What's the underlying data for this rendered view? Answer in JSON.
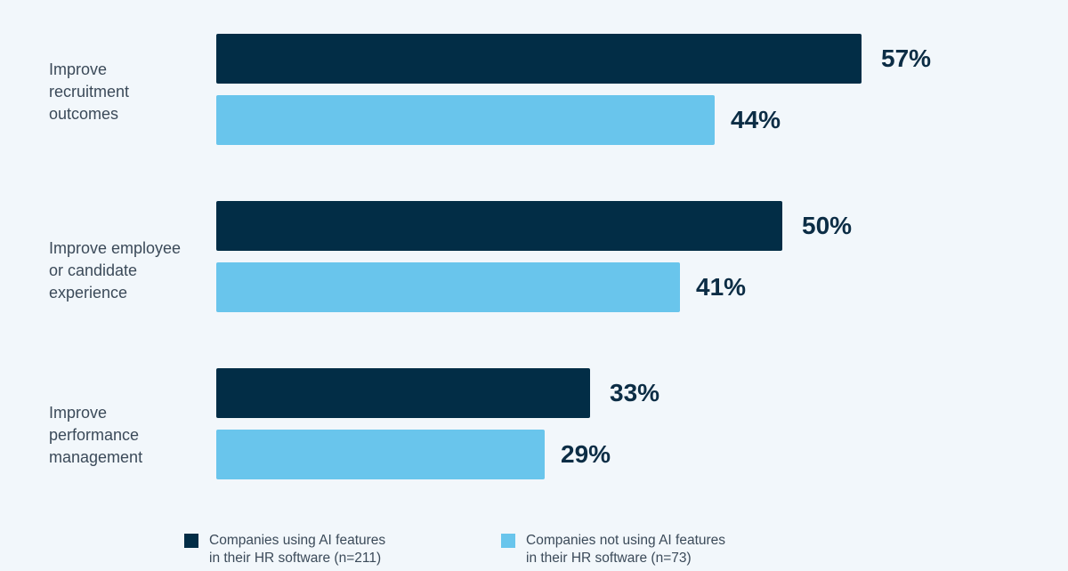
{
  "chart_data": {
    "type": "bar",
    "orientation": "horizontal",
    "categories": [
      "Improve\nrecruitment\noutcomes",
      "Improve employee\nor candidate\nexperience",
      "Improve\nperformance\nmanagement"
    ],
    "series": [
      {
        "name": "Companies using AI features\nin their HR software (n=211)",
        "color": "#022d46",
        "values": [
          57,
          50,
          33
        ],
        "labels": [
          "57%",
          "50%",
          "33%"
        ]
      },
      {
        "name": "Companies not using AI features\nin their HR software (n=73)",
        "color": "#69c5ec",
        "values": [
          44,
          41,
          29
        ],
        "labels": [
          "44%",
          "41%",
          "29%"
        ]
      }
    ],
    "unit": "%",
    "legend_position": "bottom",
    "grid": false
  }
}
